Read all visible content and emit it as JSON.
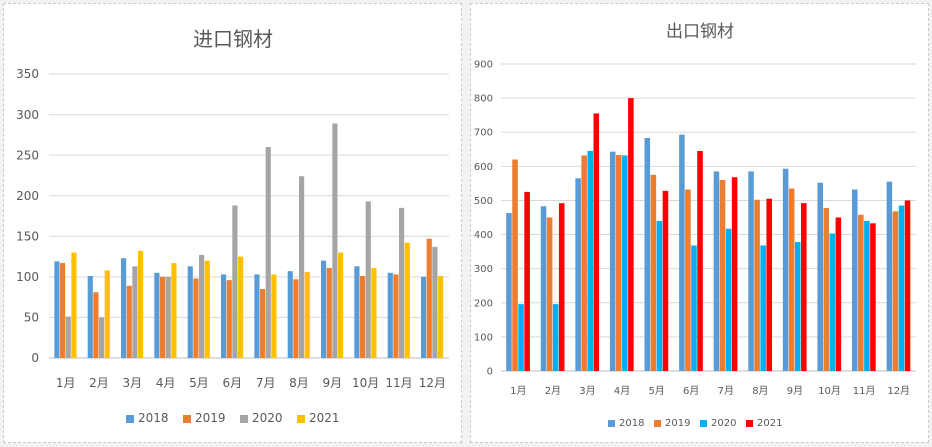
{
  "chart_data": [
    {
      "type": "bar",
      "title": "进口钢材",
      "categories": [
        "1月",
        "2月",
        "3月",
        "4月",
        "5月",
        "6月",
        "7月",
        "8月",
        "9月",
        "10月",
        "11月",
        "12月"
      ],
      "ylim": [
        0,
        350
      ],
      "yticks": [
        0,
        50,
        100,
        150,
        200,
        250,
        300,
        350
      ],
      "grid": true,
      "legend": "bottom",
      "series": [
        {
          "name": "2018",
          "color": "#5b9bd5",
          "values": [
            119,
            101,
            123,
            105,
            113,
            103,
            103,
            107,
            120,
            113,
            105,
            100
          ]
        },
        {
          "name": "2019",
          "color": "#ed7d31",
          "values": [
            117,
            81,
            89,
            100,
            98,
            96,
            85,
            97,
            111,
            101,
            103,
            147
          ]
        },
        {
          "name": "2020",
          "color": "#a5a5a5",
          "values": [
            51,
            50,
            113,
            100,
            127,
            188,
            260,
            224,
            289,
            193,
            185,
            137
          ]
        },
        {
          "name": "2021",
          "color": "#ffc000",
          "values": [
            130,
            108,
            132,
            117,
            120,
            125,
            103,
            106,
            130,
            111,
            142,
            101
          ]
        }
      ]
    },
    {
      "type": "bar",
      "title": "出口钢材",
      "categories": [
        "1月",
        "2月",
        "3月",
        "4月",
        "5月",
        "6月",
        "7月",
        "8月",
        "9月",
        "10月",
        "11月",
        "12月"
      ],
      "ylim": [
        0,
        900
      ],
      "yticks": [
        0,
        100,
        200,
        300,
        400,
        500,
        600,
        700,
        800,
        900
      ],
      "grid": true,
      "legend": "bottom",
      "series": [
        {
          "name": "2018",
          "color": "#5b9bd5",
          "values": [
            463,
            483,
            565,
            643,
            683,
            693,
            585,
            585,
            593,
            552,
            532,
            555
          ]
        },
        {
          "name": "2019",
          "color": "#ed7d31",
          "values": [
            620,
            450,
            632,
            633,
            575,
            532,
            560,
            502,
            535,
            478,
            458,
            468
          ]
        },
        {
          "name": "2020",
          "color": "#00b0f0",
          "values": [
            196,
            196,
            645,
            632,
            440,
            368,
            417,
            368,
            378,
            403,
            440,
            485
          ]
        },
        {
          "name": "2021",
          "color": "#ff0000",
          "values": [
            525,
            492,
            755,
            800,
            528,
            645,
            568,
            505,
            492,
            450,
            433,
            500
          ]
        }
      ]
    }
  ]
}
